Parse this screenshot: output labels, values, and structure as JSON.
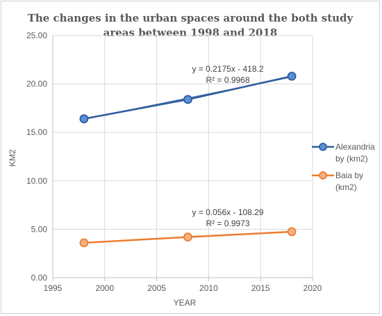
{
  "chart_data": {
    "type": "line",
    "title_lines": [
      "The changes in the urban spaces around the both study",
      "areas between 1998 and 2018"
    ],
    "xlabel": "YEAR",
    "ylabel": "KM2",
    "xlim": [
      1995,
      2020
    ],
    "ylim": [
      0,
      25
    ],
    "x_ticks": [
      1995,
      2000,
      2005,
      2010,
      2015,
      2020
    ],
    "y_ticks": [
      "0.00",
      "5.00",
      "10.00",
      "15.00",
      "20.00",
      "25.00"
    ],
    "grid": true,
    "legend_position": "right",
    "series": [
      {
        "name_lines": [
          "Alexandria",
          "by (km2)"
        ],
        "color": "#2e5c9e",
        "marker_color": "#5b8fd6",
        "x": [
          1998,
          2008,
          2018
        ],
        "y": [
          16.4,
          18.4,
          20.8
        ],
        "trendline": {
          "slope": 0.2175,
          "intercept": -418.2,
          "equation": "y = 0.2175x - 418.2",
          "r2": "R² = 0.9968"
        }
      },
      {
        "name_lines": [
          "Baia by",
          "(km2)"
        ],
        "color": "#ed7d31",
        "marker_color": "#f4b183",
        "x": [
          1998,
          2008,
          2018
        ],
        "y": [
          3.6,
          4.2,
          4.75
        ],
        "trendline": {
          "slope": 0.056,
          "intercept": -108.29,
          "equation": "y = 0.056x - 108.29",
          "r2": "R² = 0.9973"
        }
      }
    ]
  }
}
